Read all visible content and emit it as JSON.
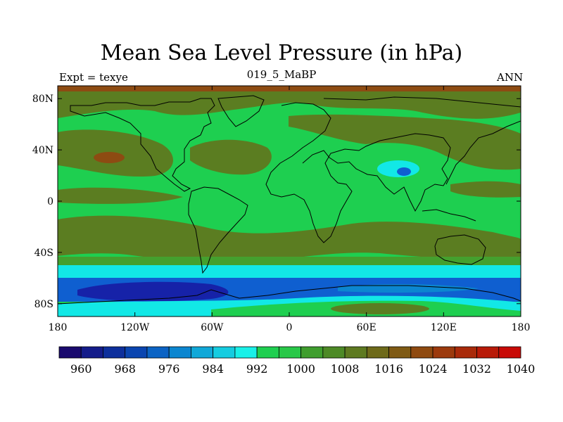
{
  "header": {
    "title": "Mean Sea Level Pressure (in hPa)",
    "left": "Expt = texye",
    "center": "019_5_MaBP",
    "right": "ANN"
  },
  "map": {
    "lon_labels": [
      "180",
      "120W",
      "60W",
      "0",
      "60E",
      "120E",
      "180"
    ],
    "lat_labels": [
      "80N",
      "40N",
      "0",
      "40S",
      "80S"
    ]
  },
  "colorbar": {
    "labels": [
      "960",
      "968",
      "976",
      "984",
      "992",
      "1000",
      "1008",
      "1016",
      "1024",
      "1032",
      "1040"
    ],
    "colors": [
      "#1a0a6e",
      "#141c8a",
      "#0d2f9c",
      "#0a45b0",
      "#0b63c4",
      "#0c86d0",
      "#10a8d8",
      "#15cce0",
      "#19f0e8",
      "#1ecf50",
      "#28c848",
      "#3f9e2e",
      "#4d8a26",
      "#5e7a20",
      "#6e6a1a",
      "#7f5a14",
      "#8f4a10",
      "#9c3a0d",
      "#a92a0a",
      "#b81a08",
      "#c80a06"
    ]
  },
  "palette": {
    "low_deep": "#1622a8",
    "low": "#0f5fd0",
    "mid_cyan": "#12e8e6",
    "green_bright": "#19d14e",
    "green_mid": "#44a02e",
    "olive": "#5b7d21",
    "brown": "#8d4b12"
  }
}
